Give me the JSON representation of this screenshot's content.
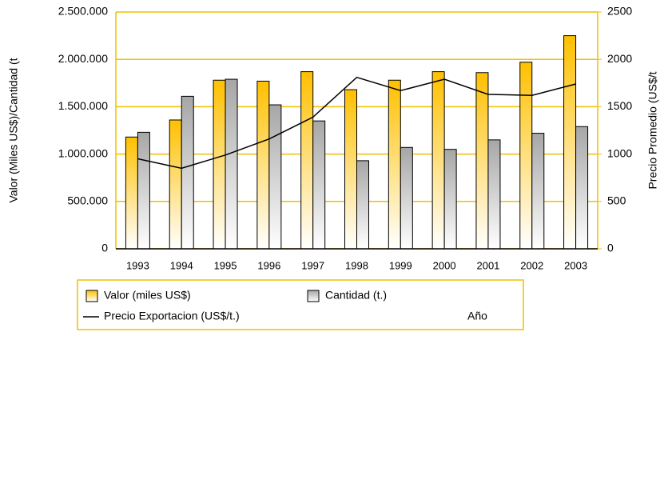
{
  "chart_data": {
    "type": "bar",
    "y_label": "Valor (Miles US$)/Cantidad (t",
    "y2_label": "Precio Promedio (US$/t",
    "x_label": "Año",
    "categories": [
      "1993",
      "1994",
      "1995",
      "1996",
      "1997",
      "1998",
      "1999",
      "2000",
      "2001",
      "2002",
      "2003"
    ],
    "series": [
      {
        "name": "Valor (miles US$)",
        "type": "bar",
        "color": "#ffc000",
        "values": [
          1180000,
          1360000,
          1780000,
          1770000,
          1870000,
          1680000,
          1780000,
          1870000,
          1860000,
          1970000,
          2250000
        ]
      },
      {
        "name": "Cantidad (t.)",
        "type": "bar",
        "color": "#a6a6a6",
        "values": [
          1230000,
          1610000,
          1790000,
          1520000,
          1350000,
          930000,
          1070000,
          1050000,
          1150000,
          1220000,
          1290000
        ]
      },
      {
        "name": "Precio Exportacion (US$/t.)",
        "type": "line",
        "color": "#000000",
        "axis": "y2",
        "values": [
          950,
          850,
          990,
          1160,
          1390,
          1810,
          1670,
          1790,
          1630,
          1620,
          1740
        ]
      }
    ],
    "ylim": [
      0,
      2500000
    ],
    "yticks": [
      {
        "value": 0,
        "label": "0"
      },
      {
        "value": 500000,
        "label": "500.000"
      },
      {
        "value": 1000000,
        "label": "1.000.000"
      },
      {
        "value": 1500000,
        "label": "1.500.000"
      },
      {
        "value": 2000000,
        "label": "2.000.000"
      },
      {
        "value": 2500000,
        "label": "2.500.000"
      }
    ],
    "y2lim": [
      0,
      2500
    ],
    "y2ticks": [
      0,
      500,
      1000,
      1500,
      2000,
      2500
    ],
    "grid": true,
    "grid_color": "#f0c000"
  }
}
